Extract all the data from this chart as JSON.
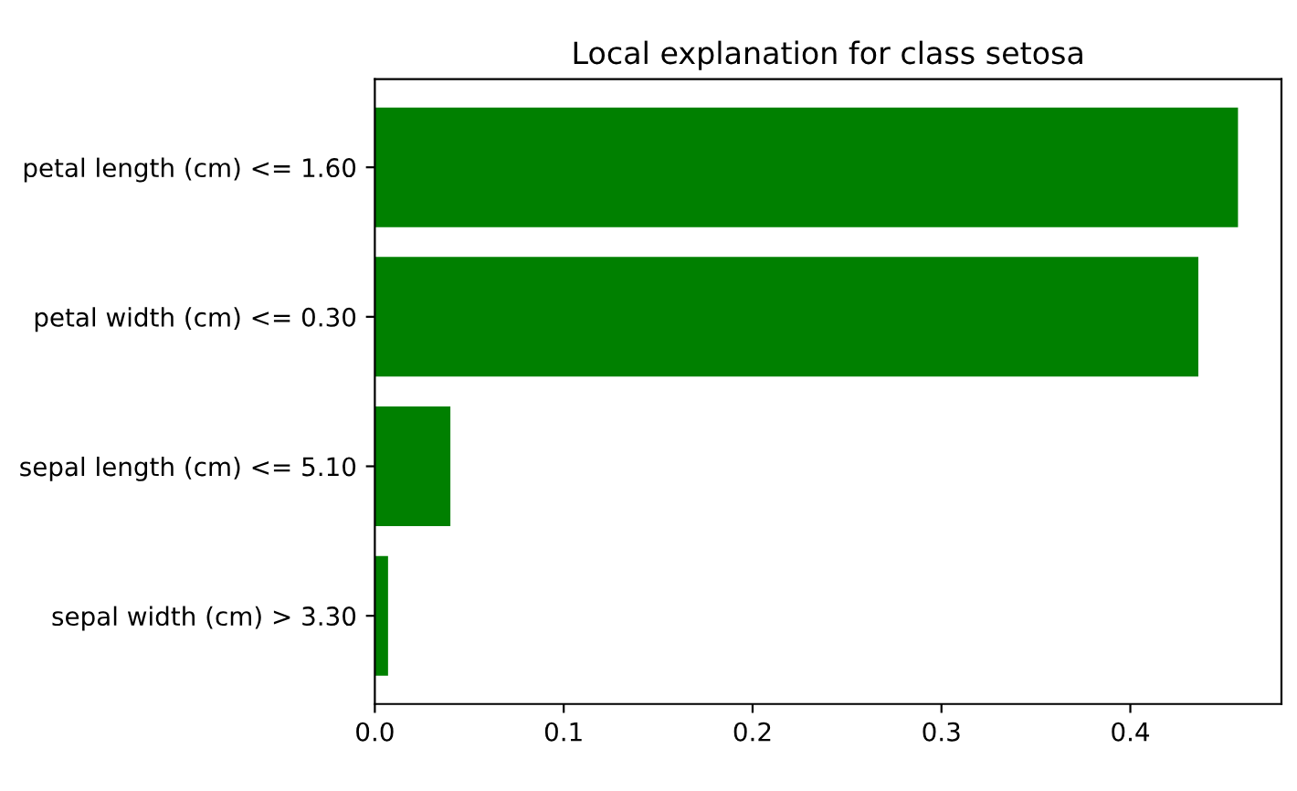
{
  "chart_data": {
    "type": "bar",
    "orientation": "horizontal",
    "title": "Local explanation for class setosa",
    "categories": [
      "petal length (cm) <= 1.60",
      "petal width (cm) <= 0.30",
      "sepal length (cm) <= 5.10",
      "sepal width (cm) > 3.30"
    ],
    "values": [
      0.457,
      0.436,
      0.04,
      0.007
    ],
    "color": "#008000",
    "xlim": [
      0,
      0.48
    ],
    "xticks": [
      {
        "value": 0,
        "label": "0.0"
      },
      0.1,
      0.2,
      0.3,
      0.4
    ],
    "grid": false,
    "legend": false
  }
}
